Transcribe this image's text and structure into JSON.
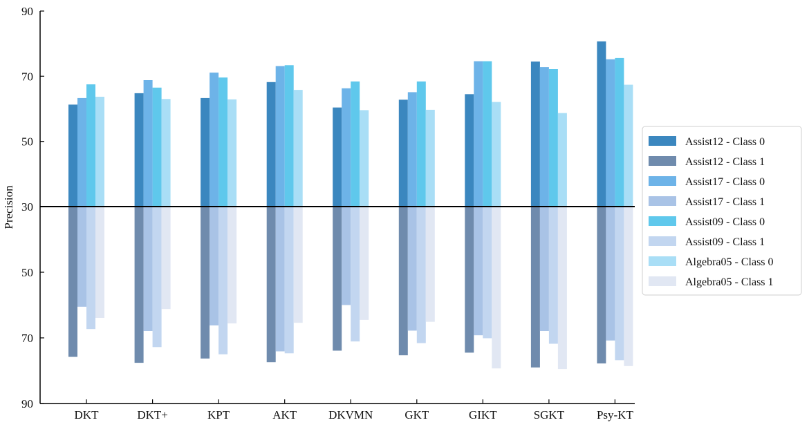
{
  "chart_data": {
    "type": "bar",
    "ylabel": "Precision",
    "xlabel": "",
    "title": "",
    "layout": "diverging bars: Class 0 series extend upward and Class 1 series extend downward from the 30 baseline; y tick labels mirror (90, 70, 50, 30, 50, 70, 90)",
    "baseline": 30,
    "ylim": [
      30,
      90
    ],
    "yticks_upper": [
      90,
      70,
      50,
      30
    ],
    "yticks_lower": [
      50,
      70,
      90
    ],
    "grid": false,
    "legend_position": "right",
    "categories": [
      "DKT",
      "DKT+",
      "KPT",
      "AKT",
      "DKVMN",
      "GKT",
      "GIKT",
      "SGKT",
      "Psy-KT"
    ],
    "series": [
      {
        "name": "Assist12 - Class 0",
        "direction": "up",
        "color": "#3b87bf",
        "values": [
          61.3,
          64.8,
          63.3,
          68.2,
          60.4,
          62.8,
          64.5,
          74.5,
          80.7
        ]
      },
      {
        "name": "Assist12 - Class 1",
        "direction": "down",
        "color": "#6f8bad",
        "values": [
          75.8,
          77.6,
          76.3,
          77.4,
          73.9,
          75.3,
          74.5,
          79.0,
          77.8
        ]
      },
      {
        "name": "Assist17 - Class 0",
        "direction": "up",
        "color": "#6db3e8",
        "values": [
          63.3,
          68.8,
          71.1,
          73.1,
          66.3,
          65.1,
          74.6,
          72.8,
          75.2
        ]
      },
      {
        "name": "Assist17 - Class 1",
        "direction": "down",
        "color": "#a9c3e6",
        "values": [
          60.5,
          67.9,
          66.2,
          74.1,
          60.0,
          67.8,
          69.2,
          67.9,
          70.8
        ]
      },
      {
        "name": "Assist09 - Class 0",
        "direction": "up",
        "color": "#5fc8ec",
        "values": [
          67.5,
          66.5,
          69.6,
          73.4,
          68.4,
          68.4,
          74.6,
          72.2,
          75.6
        ]
      },
      {
        "name": "Assist09 - Class 1",
        "direction": "down",
        "color": "#c2d6f0",
        "values": [
          67.3,
          72.8,
          75.0,
          74.7,
          71.1,
          71.6,
          70.1,
          71.8,
          76.8
        ]
      },
      {
        "name": "Algebra05 - Class 0",
        "direction": "up",
        "color": "#a9def6",
        "values": [
          63.7,
          63.0,
          62.9,
          65.8,
          59.6,
          59.7,
          62.1,
          58.7,
          67.4
        ]
      },
      {
        "name": "Algebra05 - Class 1",
        "direction": "down",
        "color": "#e1e7f3",
        "values": [
          63.9,
          61.2,
          65.6,
          65.4,
          64.5,
          65.1,
          79.3,
          79.5,
          78.6
        ]
      }
    ]
  }
}
